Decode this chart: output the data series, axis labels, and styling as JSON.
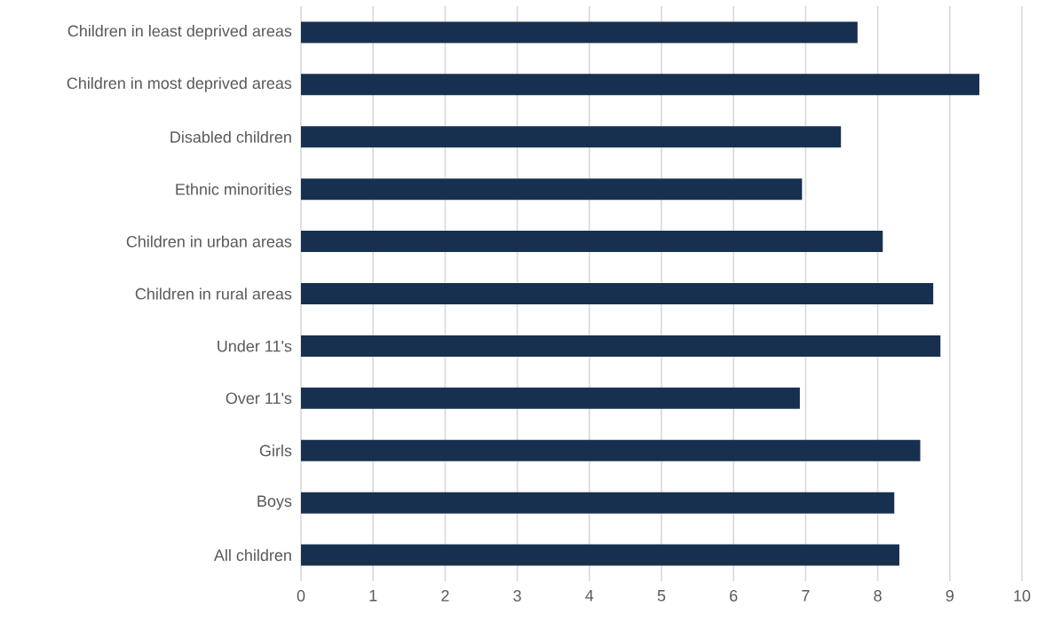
{
  "chart_data": {
    "type": "bar",
    "orientation": "horizontal",
    "categories": [
      "Children in least deprived areas",
      "Children in most deprived areas",
      "Disabled children",
      "Ethnic minorities",
      "Children in urban areas",
      "Children in rural areas",
      "Under 11's",
      "Over 11's",
      "Girls",
      "Boys",
      "All children"
    ],
    "values": [
      7.72,
      9.41,
      7.49,
      6.95,
      8.07,
      8.77,
      8.87,
      6.92,
      8.59,
      8.23,
      8.3
    ],
    "color": "#18304f",
    "xlim": [
      0,
      10
    ],
    "xticks": [
      0,
      1,
      2,
      3,
      4,
      5,
      6,
      7,
      8,
      9,
      10
    ],
    "grid": "x"
  }
}
